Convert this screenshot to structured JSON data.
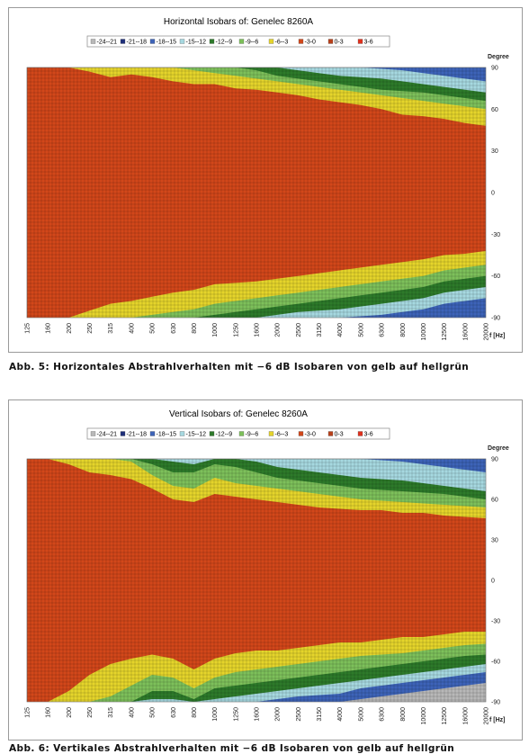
{
  "colors": {
    "-24 - -21": "#b8b8b8",
    "-21 - -18": "#1e2f7a",
    "-18 - -15": "#3d63b8",
    "-15 - -12": "#a6d8e0",
    "-12 - -9": "#2d7a2a",
    "-9 - -6": "#7dc05a",
    "-6 - -3": "#e5d42b",
    "-3 - 0": "#d2471a",
    "0 - 3": "#b8401a",
    "3 - 6": "#e0301c"
  },
  "chart_data": [
    {
      "type": "heatmap",
      "title": "Horizontal Isobars of:   Genelec  8260A",
      "ylabel": "Degree",
      "xlabel": "f [Hz]",
      "x_ticks": [
        "125",
        "160",
        "200",
        "250",
        "315",
        "400",
        "500",
        "630",
        "800",
        "1000",
        "1250",
        "1600",
        "2000",
        "2500",
        "3150",
        "4000",
        "5000",
        "6300",
        "8000",
        "10000",
        "12500",
        "16000",
        "20000"
      ],
      "y_ticks": [
        90,
        60,
        30,
        0,
        -30,
        -60,
        -90
      ],
      "ylim": [
        -90,
        90
      ],
      "legend": [
        "-24--21",
        "-21--18",
        "-18--15",
        "-15--12",
        "-12--9",
        "-9--6",
        "-6--3",
        "-3-0",
        "0-3",
        "3-6"
      ],
      "legend_position": "top",
      "grid": true,
      "contours": {
        "upper": {
          "yellow": [
            90,
            90,
            90,
            87,
            83,
            85,
            83,
            80,
            78,
            78,
            75,
            74,
            72,
            70,
            67,
            65,
            63,
            60,
            56,
            55,
            53,
            50,
            48
          ],
          "green": [
            90,
            90,
            90,
            90,
            90,
            90,
            90,
            90,
            88,
            86,
            84,
            82,
            80,
            78,
            76,
            74,
            72,
            70,
            68,
            66,
            64,
            62,
            60
          ],
          "dkgreen": [
            90,
            90,
            90,
            90,
            90,
            90,
            90,
            90,
            90,
            90,
            90,
            88,
            84,
            82,
            80,
            78,
            76,
            74,
            73,
            72,
            70,
            68,
            66
          ],
          "cyan": [
            90,
            90,
            90,
            90,
            90,
            90,
            90,
            90,
            90,
            90,
            90,
            90,
            90,
            88,
            86,
            84,
            83,
            82,
            80,
            78,
            76,
            74,
            72
          ],
          "blue": [
            90,
            90,
            90,
            90,
            90,
            90,
            90,
            90,
            90,
            90,
            90,
            90,
            90,
            90,
            90,
            90,
            90,
            89,
            88,
            86,
            84,
            82,
            80
          ]
        },
        "lower": {
          "yellow": [
            -90,
            -90,
            -90,
            -85,
            -80,
            -78,
            -75,
            -72,
            -70,
            -66,
            -65,
            -64,
            -62,
            -60,
            -58,
            -56,
            -54,
            -52,
            -50,
            -48,
            -45,
            -44,
            -42
          ],
          "green": [
            -90,
            -90,
            -90,
            -90,
            -90,
            -90,
            -88,
            -86,
            -84,
            -80,
            -78,
            -76,
            -74,
            -72,
            -70,
            -68,
            -66,
            -64,
            -62,
            -60,
            -56,
            -54,
            -52
          ],
          "dkgreen": [
            -90,
            -90,
            -90,
            -90,
            -90,
            -90,
            -90,
            -90,
            -90,
            -88,
            -86,
            -84,
            -82,
            -80,
            -78,
            -76,
            -74,
            -72,
            -70,
            -68,
            -64,
            -62,
            -60
          ],
          "cyan": [
            -90,
            -90,
            -90,
            -90,
            -90,
            -90,
            -90,
            -90,
            -90,
            -90,
            -90,
            -90,
            -88,
            -86,
            -85,
            -84,
            -82,
            -80,
            -78,
            -76,
            -72,
            -70,
            -68
          ],
          "blue": [
            -90,
            -90,
            -90,
            -90,
            -90,
            -90,
            -90,
            -90,
            -90,
            -90,
            -90,
            -90,
            -90,
            -90,
            -90,
            -90,
            -89,
            -88,
            -86,
            -84,
            -80,
            -78,
            -76
          ],
          "grey": [
            -90,
            -90,
            -90,
            -90,
            -90,
            -90,
            -90,
            -90,
            -90,
            -90,
            -90,
            -90,
            -90,
            -90,
            -90,
            -90,
            -90,
            -90,
            -90,
            -90,
            -90,
            -90,
            -90
          ]
        }
      }
    },
    {
      "type": "heatmap",
      "title": "Vertical Isobars of:   Genelec  8260A",
      "ylabel": "Degree",
      "xlabel": "f [Hz]",
      "x_ticks": [
        "125",
        "160",
        "200",
        "250",
        "315",
        "400",
        "500",
        "630",
        "800",
        "1000",
        "1250",
        "1600",
        "2000",
        "2500",
        "3150",
        "4000",
        "5000",
        "6300",
        "8000",
        "10000",
        "12500",
        "16000",
        "20000"
      ],
      "y_ticks": [
        90,
        60,
        30,
        0,
        -30,
        -60,
        -90
      ],
      "ylim": [
        -90,
        90
      ],
      "legend": [
        "-24--21",
        "-21--18",
        "-18--15",
        "-15--12",
        "-12--9",
        "-9--6",
        "-6--3",
        "-3-0",
        "0-3",
        "3-6"
      ],
      "legend_position": "top",
      "grid": true,
      "contours": {
        "upper": {
          "yellow": [
            90,
            90,
            86,
            80,
            78,
            75,
            68,
            60,
            58,
            64,
            62,
            60,
            58,
            56,
            54,
            53,
            52,
            52,
            50,
            50,
            48,
            47,
            46
          ],
          "green": [
            90,
            90,
            90,
            90,
            90,
            88,
            78,
            70,
            68,
            76,
            72,
            70,
            68,
            66,
            64,
            62,
            60,
            59,
            58,
            57,
            56,
            55,
            54
          ],
          "dkgreen": [
            90,
            90,
            90,
            90,
            90,
            90,
            86,
            80,
            80,
            86,
            84,
            80,
            76,
            74,
            72,
            70,
            68,
            67,
            66,
            65,
            64,
            62,
            60
          ],
          "cyan": [
            90,
            90,
            90,
            90,
            90,
            90,
            90,
            88,
            86,
            90,
            90,
            88,
            84,
            82,
            80,
            78,
            76,
            75,
            74,
            72,
            70,
            68,
            66
          ],
          "blue": [
            90,
            90,
            90,
            90,
            90,
            90,
            90,
            90,
            90,
            90,
            90,
            90,
            90,
            90,
            90,
            90,
            90,
            89,
            88,
            86,
            84,
            82,
            80
          ]
        },
        "lower": {
          "yellow": [
            -90,
            -90,
            -82,
            -70,
            -62,
            -58,
            -55,
            -58,
            -66,
            -58,
            -54,
            -52,
            -52,
            -50,
            -48,
            -46,
            -46,
            -44,
            -42,
            -42,
            -40,
            -38,
            -38
          ],
          "green": [
            -90,
            -90,
            -90,
            -90,
            -86,
            -78,
            -70,
            -72,
            -80,
            -72,
            -68,
            -66,
            -64,
            -62,
            -60,
            -58,
            -56,
            -55,
            -54,
            -52,
            -50,
            -48,
            -47
          ],
          "dkgreen": [
            -90,
            -90,
            -90,
            -90,
            -90,
            -90,
            -82,
            -82,
            -88,
            -80,
            -78,
            -76,
            -74,
            -72,
            -70,
            -68,
            -66,
            -64,
            -62,
            -60,
            -58,
            -56,
            -55
          ],
          "cyan": [
            -90,
            -90,
            -90,
            -90,
            -90,
            -90,
            -88,
            -88,
            -90,
            -88,
            -86,
            -84,
            -82,
            -80,
            -78,
            -76,
            -74,
            -72,
            -70,
            -68,
            -66,
            -64,
            -62
          ],
          "blue": [
            -90,
            -90,
            -90,
            -90,
            -90,
            -90,
            -90,
            -90,
            -90,
            -90,
            -90,
            -90,
            -88,
            -86,
            -85,
            -84,
            -80,
            -78,
            -76,
            -74,
            -72,
            -70,
            -68
          ],
          "grey": [
            -90,
            -90,
            -90,
            -90,
            -90,
            -90,
            -90,
            -90,
            -90,
            -90,
            -90,
            -90,
            -90,
            -90,
            -90,
            -90,
            -88,
            -86,
            -84,
            -82,
            -80,
            -78,
            -76
          ]
        }
      }
    }
  ],
  "captions": [
    "Abb. 5: Horizontales Abstrahlverhalten mit −6 dB Isobaren von gelb auf hellgrün",
    "Abb. 6: Vertikales Abstrahlverhalten mit −6 dB Isobaren von gelb auf hellgrün"
  ]
}
